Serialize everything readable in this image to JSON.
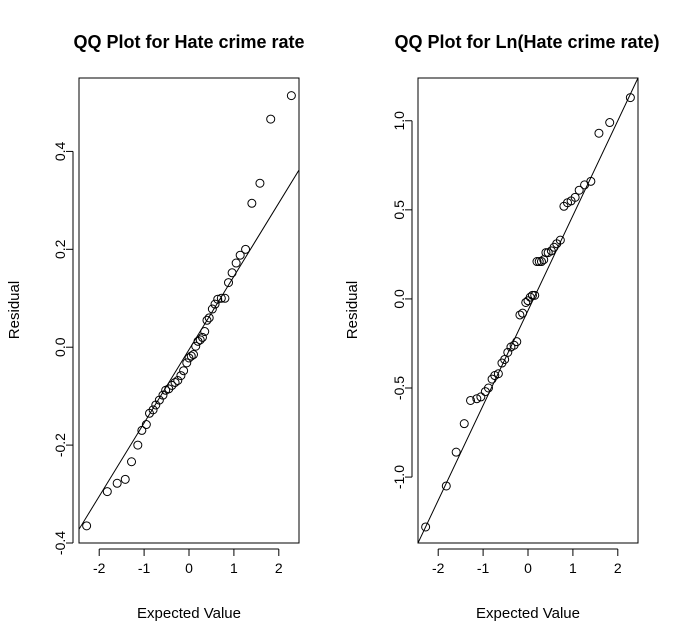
{
  "chart_data": [
    {
      "type": "scatter",
      "title": "QQ Plot for Hate crime rate",
      "xlabel": "Expected Value",
      "ylabel": "Residual",
      "xlim": [
        -2.45,
        2.45
      ],
      "ylim": [
        -0.4,
        0.55
      ],
      "xticks": [
        -2,
        -1,
        0,
        1,
        2
      ],
      "xtick_labels": [
        "-2",
        "-1",
        "0",
        "1",
        "2"
      ],
      "yticks": [
        -0.4,
        -0.2,
        0.0,
        0.2,
        0.4
      ],
      "ytick_labels": [
        "-0.4",
        "-0.2",
        "0.0",
        "0.2",
        "0.4"
      ],
      "reference_line": {
        "x1": -2.45,
        "y1": -0.372,
        "x2": 2.45,
        "y2": 0.362
      },
      "grid": false,
      "legend": "none",
      "points": [
        {
          "x": -2.28,
          "y": -0.365
        },
        {
          "x": -1.82,
          "y": -0.295
        },
        {
          "x": -1.6,
          "y": -0.278
        },
        {
          "x": -1.42,
          "y": -0.27
        },
        {
          "x": -1.28,
          "y": -0.234
        },
        {
          "x": -1.14,
          "y": -0.2
        },
        {
          "x": -1.05,
          "y": -0.17
        },
        {
          "x": -0.95,
          "y": -0.158
        },
        {
          "x": -0.88,
          "y": -0.135
        },
        {
          "x": -0.8,
          "y": -0.128
        },
        {
          "x": -0.74,
          "y": -0.118
        },
        {
          "x": -0.66,
          "y": -0.108
        },
        {
          "x": -0.58,
          "y": -0.098
        },
        {
          "x": -0.52,
          "y": -0.088
        },
        {
          "x": -0.45,
          "y": -0.085
        },
        {
          "x": -0.38,
          "y": -0.078
        },
        {
          "x": -0.31,
          "y": -0.072
        },
        {
          "x": -0.25,
          "y": -0.068
        },
        {
          "x": -0.18,
          "y": -0.058
        },
        {
          "x": -0.12,
          "y": -0.048
        },
        {
          "x": -0.05,
          "y": -0.032
        },
        {
          "x": 0.0,
          "y": -0.022
        },
        {
          "x": 0.05,
          "y": -0.018
        },
        {
          "x": 0.1,
          "y": -0.015
        },
        {
          "x": 0.15,
          "y": 0.002
        },
        {
          "x": 0.2,
          "y": 0.012
        },
        {
          "x": 0.25,
          "y": 0.015
        },
        {
          "x": 0.3,
          "y": 0.02
        },
        {
          "x": 0.35,
          "y": 0.032
        },
        {
          "x": 0.4,
          "y": 0.055
        },
        {
          "x": 0.45,
          "y": 0.06
        },
        {
          "x": 0.52,
          "y": 0.078
        },
        {
          "x": 0.58,
          "y": 0.088
        },
        {
          "x": 0.64,
          "y": 0.098
        },
        {
          "x": 0.72,
          "y": 0.1
        },
        {
          "x": 0.8,
          "y": 0.1
        },
        {
          "x": 0.88,
          "y": 0.132
        },
        {
          "x": 0.96,
          "y": 0.152
        },
        {
          "x": 1.05,
          "y": 0.172
        },
        {
          "x": 1.14,
          "y": 0.188
        },
        {
          "x": 1.26,
          "y": 0.2
        },
        {
          "x": 1.4,
          "y": 0.294
        },
        {
          "x": 1.58,
          "y": 0.335
        },
        {
          "x": 1.82,
          "y": 0.466
        },
        {
          "x": 2.28,
          "y": 0.514
        }
      ]
    },
    {
      "type": "scatter",
      "title": "QQ Plot for Ln(Hate crime rate)",
      "xlabel": "Expected Value",
      "ylabel": "Residual",
      "xlim": [
        -2.45,
        2.45
      ],
      "ylim": [
        -1.37,
        1.24
      ],
      "xticks": [
        -2,
        -1,
        0,
        1,
        2
      ],
      "xtick_labels": [
        "-2",
        "-1",
        "0",
        "1",
        "2"
      ],
      "yticks": [
        -1.0,
        -0.5,
        0.0,
        0.5,
        1.0
      ],
      "ytick_labels": [
        "-1.0",
        "-0.5",
        "0.0",
        "0.5",
        "1.0"
      ],
      "reference_line": {
        "x1": -2.45,
        "y1": -1.37,
        "x2": 2.45,
        "y2": 1.24
      },
      "grid": false,
      "legend": "none",
      "points": [
        {
          "x": -2.28,
          "y": -1.28
        },
        {
          "x": -1.82,
          "y": -1.05
        },
        {
          "x": -1.6,
          "y": -0.86
        },
        {
          "x": -1.42,
          "y": -0.7
        },
        {
          "x": -1.28,
          "y": -0.57
        },
        {
          "x": -1.14,
          "y": -0.56
        },
        {
          "x": -1.05,
          "y": -0.55
        },
        {
          "x": -0.95,
          "y": -0.52
        },
        {
          "x": -0.88,
          "y": -0.5
        },
        {
          "x": -0.8,
          "y": -0.45
        },
        {
          "x": -0.74,
          "y": -0.43
        },
        {
          "x": -0.66,
          "y": -0.42
        },
        {
          "x": -0.58,
          "y": -0.36
        },
        {
          "x": -0.52,
          "y": -0.34
        },
        {
          "x": -0.45,
          "y": -0.3
        },
        {
          "x": -0.38,
          "y": -0.27
        },
        {
          "x": -0.31,
          "y": -0.26
        },
        {
          "x": -0.25,
          "y": -0.24
        },
        {
          "x": -0.18,
          "y": -0.09
        },
        {
          "x": -0.12,
          "y": -0.08
        },
        {
          "x": -0.05,
          "y": -0.02
        },
        {
          "x": 0.0,
          "y": -0.01
        },
        {
          "x": 0.05,
          "y": 0.01
        },
        {
          "x": 0.1,
          "y": 0.02
        },
        {
          "x": 0.15,
          "y": 0.02
        },
        {
          "x": 0.2,
          "y": 0.21
        },
        {
          "x": 0.25,
          "y": 0.21
        },
        {
          "x": 0.3,
          "y": 0.21
        },
        {
          "x": 0.35,
          "y": 0.22
        },
        {
          "x": 0.4,
          "y": 0.26
        },
        {
          "x": 0.45,
          "y": 0.26
        },
        {
          "x": 0.52,
          "y": 0.27
        },
        {
          "x": 0.58,
          "y": 0.29
        },
        {
          "x": 0.64,
          "y": 0.31
        },
        {
          "x": 0.72,
          "y": 0.33
        },
        {
          "x": 0.8,
          "y": 0.52
        },
        {
          "x": 0.88,
          "y": 0.54
        },
        {
          "x": 0.96,
          "y": 0.55
        },
        {
          "x": 1.05,
          "y": 0.57
        },
        {
          "x": 1.14,
          "y": 0.61
        },
        {
          "x": 1.26,
          "y": 0.64
        },
        {
          "x": 1.4,
          "y": 0.66
        },
        {
          "x": 1.58,
          "y": 0.93
        },
        {
          "x": 1.82,
          "y": 0.99
        },
        {
          "x": 2.28,
          "y": 1.13
        }
      ]
    }
  ]
}
